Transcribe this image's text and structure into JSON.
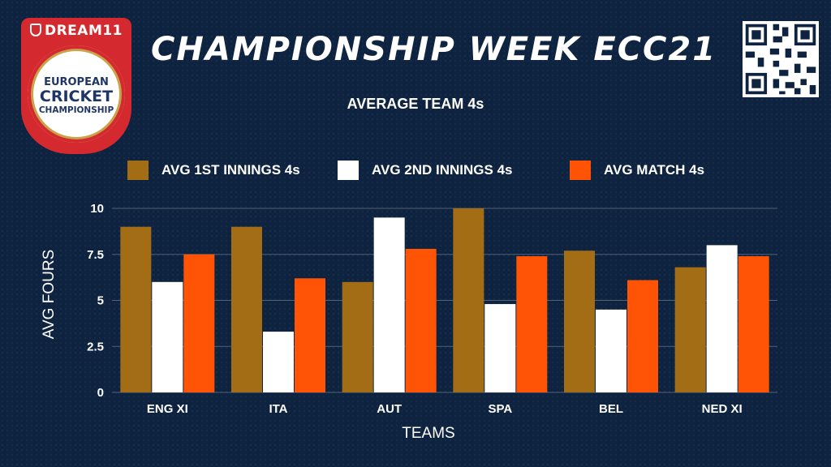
{
  "badge": {
    "brand": "DREAM11",
    "line1": "EUROPEAN",
    "line2": "CRICKET",
    "line3": "CHAMPIONSHIP"
  },
  "header": {
    "title": "CHAMPIONSHIP WEEK ECC21",
    "qr_icon": "qr-code-icon"
  },
  "colors": {
    "background": "#0e2340",
    "first_innings": "#a36d16",
    "second_innings": "#ffffff",
    "match": "#ff5405",
    "badge_red": "#d42a2f"
  },
  "chart_data": {
    "type": "bar",
    "title": "AVERAGE TEAM 4s",
    "xlabel": "TEAMS",
    "ylabel": "AVG FOURS",
    "categories": [
      "ENG XI",
      "ITA",
      "AUT",
      "SPA",
      "BEL",
      "NED XI"
    ],
    "series": [
      {
        "name": "AVG 1ST INNINGS 4s",
        "color": "#a36d16",
        "values": [
          9,
          9,
          6,
          10,
          7.7,
          6.8
        ]
      },
      {
        "name": "AVG 2ND INNINGS 4s",
        "color": "#ffffff",
        "values": [
          6,
          3.3,
          9.5,
          4.8,
          4.5,
          8
        ]
      },
      {
        "name": "AVG MATCH 4s",
        "color": "#ff5405",
        "values": [
          7.5,
          6.2,
          7.8,
          7.4,
          6.1,
          7.4
        ]
      }
    ],
    "ylim": [
      0,
      10
    ],
    "yticks": [
      "0",
      "2.5",
      "5",
      "7.5",
      "10"
    ],
    "grid": true,
    "legend": "top"
  }
}
